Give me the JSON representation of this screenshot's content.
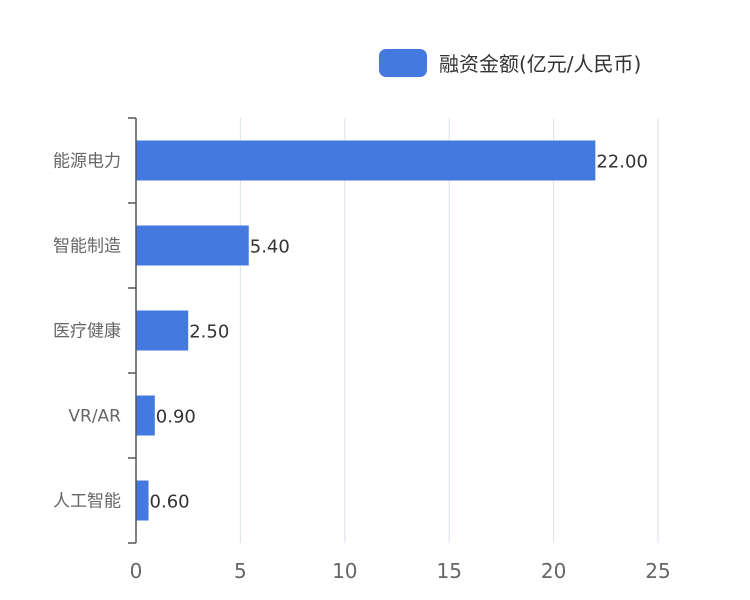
{
  "chart_data": {
    "type": "bar",
    "orientation": "horizontal",
    "categories": [
      "能源电力",
      "智能制造",
      "医疗健康",
      "VR/AR",
      "人工智能"
    ],
    "series": [
      {
        "name": "融资金额(亿元/人民币)",
        "values": [
          22.0,
          5.4,
          2.5,
          0.9,
          0.6
        ]
      }
    ],
    "value_labels": [
      "22.00",
      "5.40",
      "2.50",
      "0.90",
      "0.60"
    ],
    "xlim": [
      0,
      25
    ],
    "x_ticks": [
      0,
      5,
      10,
      15,
      20,
      25
    ],
    "legend": {
      "label": "融资金额(亿元/人民币)",
      "position": "top-right"
    },
    "grid": true,
    "colors": {
      "bar": "#4479e0",
      "grid": "#dde6ee",
      "axis": "#555555"
    }
  }
}
